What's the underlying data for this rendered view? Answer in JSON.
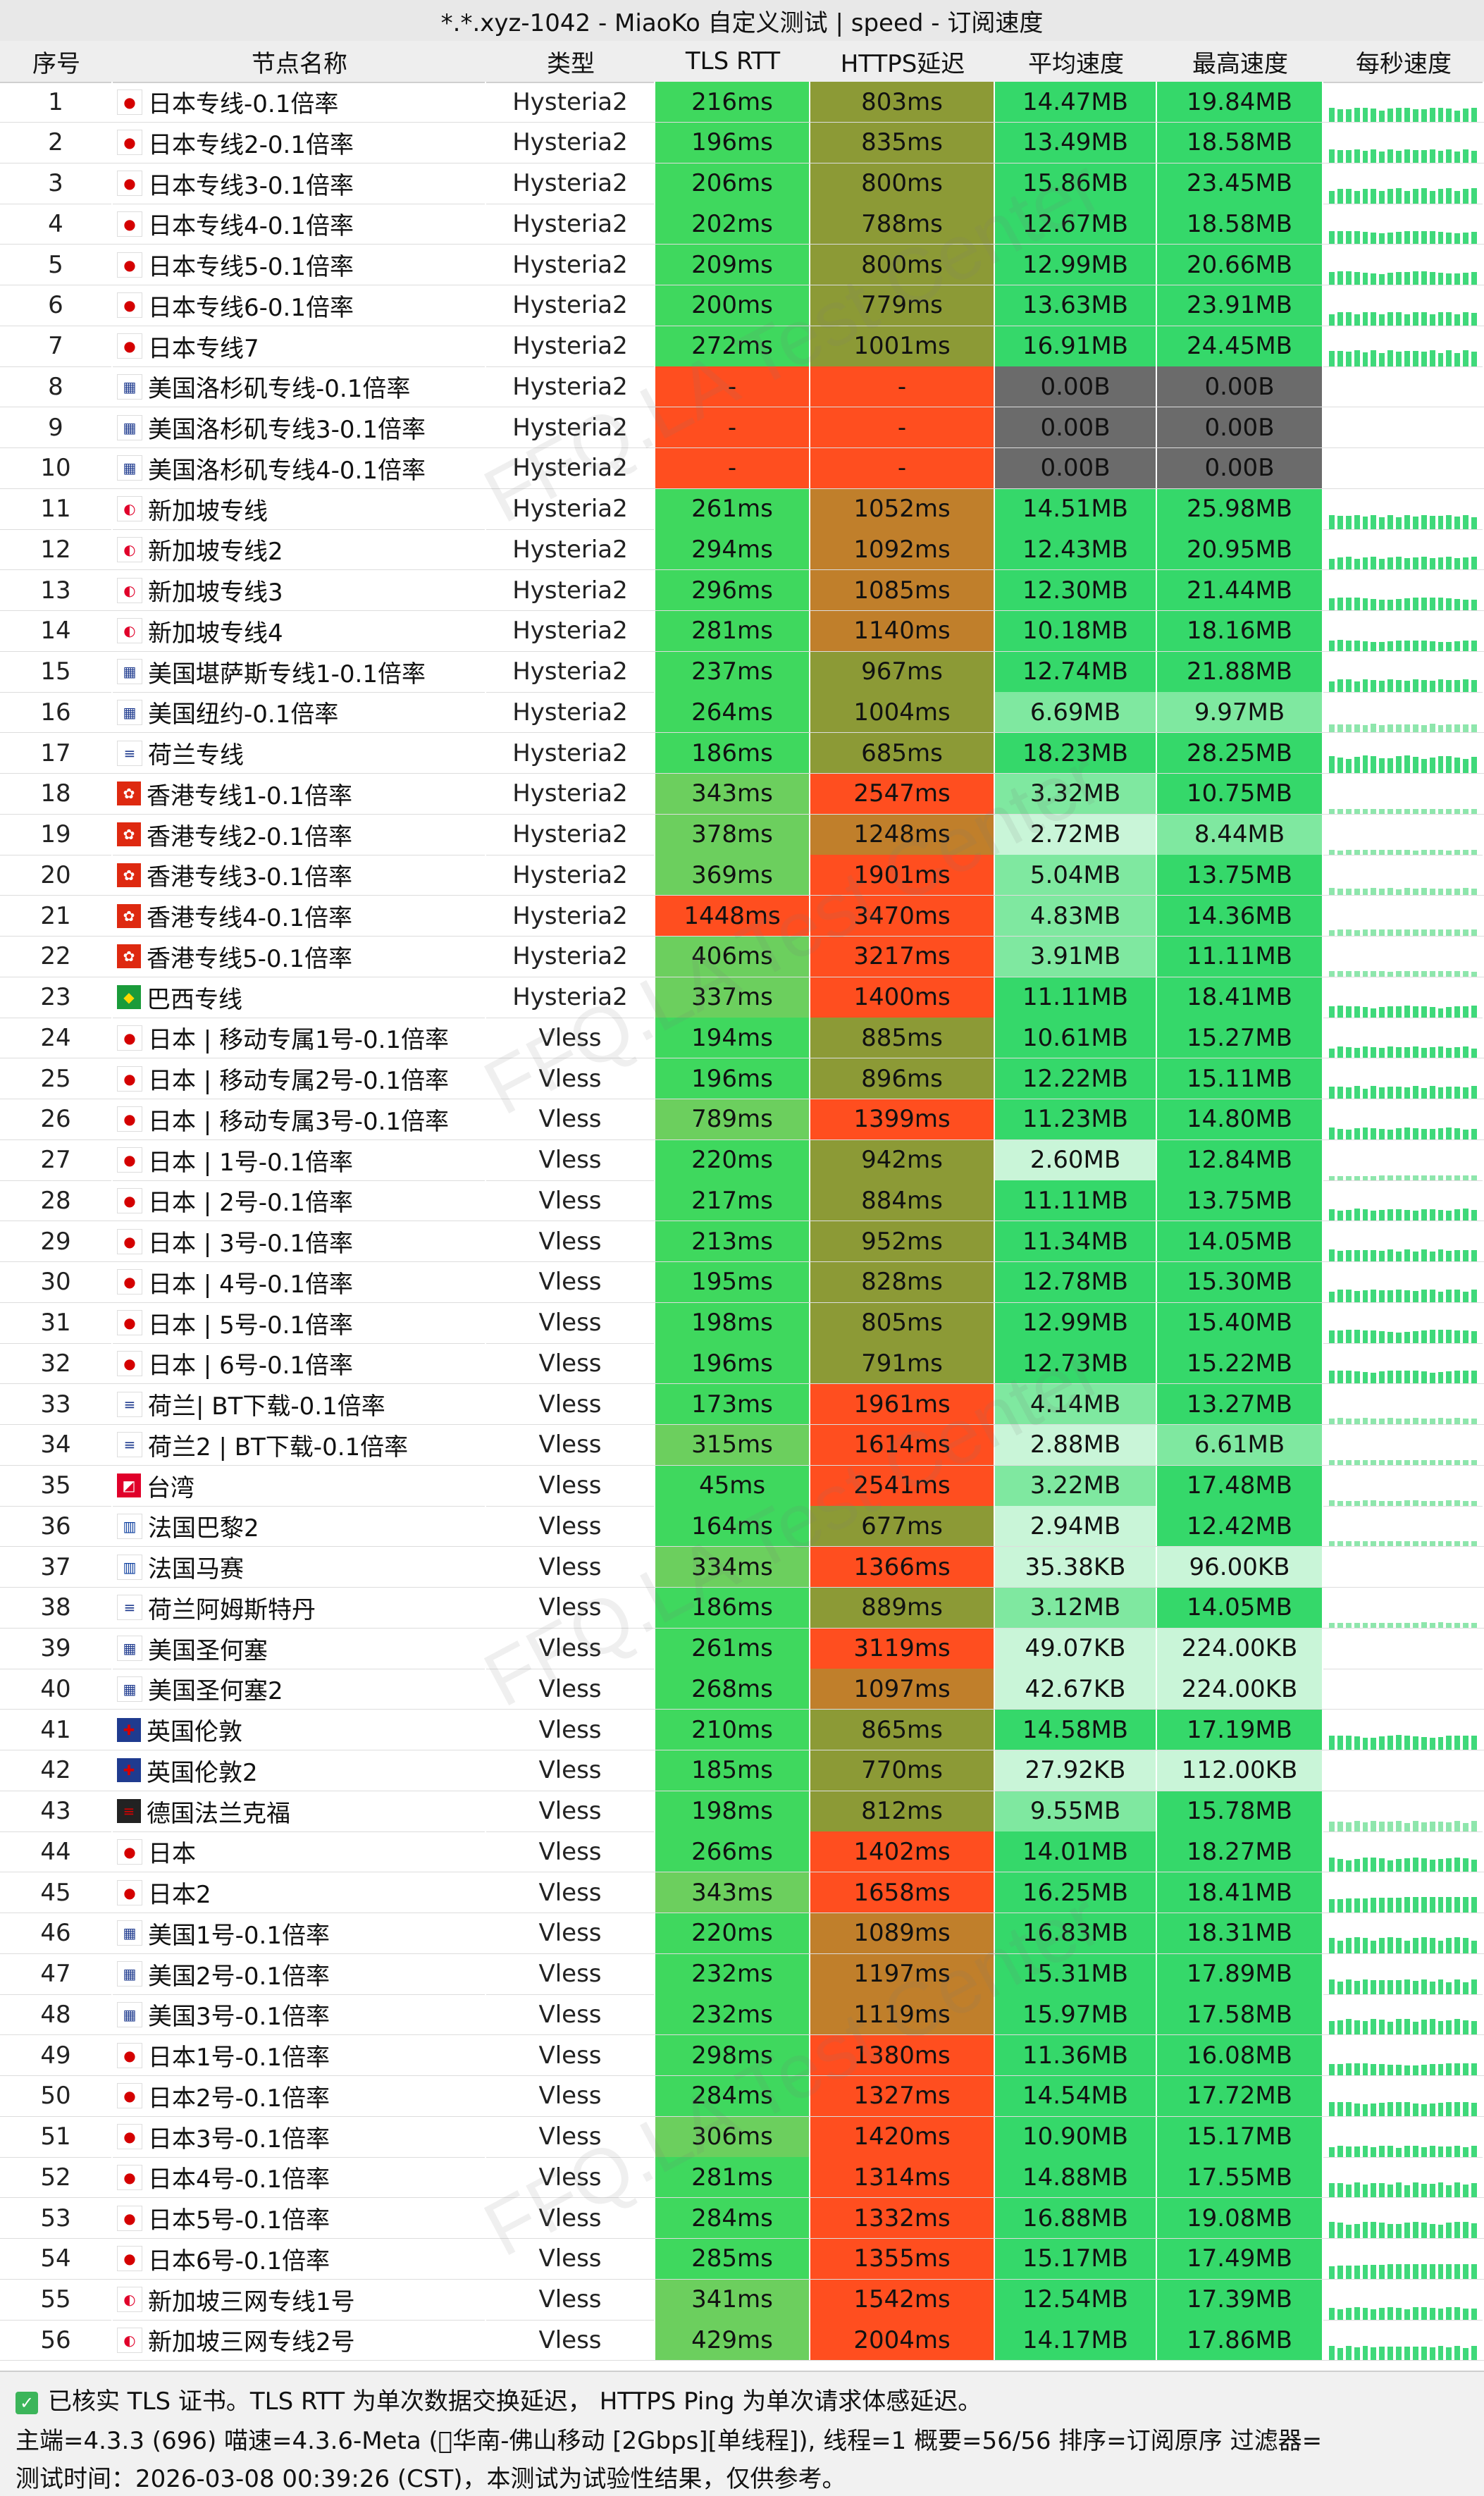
{
  "title": "*.*.xyz-1042 - MiaoKo 自定义测试 | speed - 订阅速度",
  "columns": [
    "序号",
    "节点名称",
    "类型",
    "TLS RTT",
    "HTTPS延迟",
    "平均速度",
    "最高速度",
    "每秒速度"
  ],
  "rows": [
    {
      "id": "1",
      "flag": "jp",
      "name": "日本专线-0.1倍率",
      "type": "Hysteria2",
      "tls": "216ms",
      "https": "803ms",
      "avg": "14.47MB",
      "max": "19.84MB"
    },
    {
      "id": "2",
      "flag": "jp",
      "name": "日本专线2-0.1倍率",
      "type": "Hysteria2",
      "tls": "196ms",
      "https": "835ms",
      "avg": "13.49MB",
      "max": "18.58MB"
    },
    {
      "id": "3",
      "flag": "jp",
      "name": "日本专线3-0.1倍率",
      "type": "Hysteria2",
      "tls": "206ms",
      "https": "800ms",
      "avg": "15.86MB",
      "max": "23.45MB"
    },
    {
      "id": "4",
      "flag": "jp",
      "name": "日本专线4-0.1倍率",
      "type": "Hysteria2",
      "tls": "202ms",
      "https": "788ms",
      "avg": "12.67MB",
      "max": "18.58MB"
    },
    {
      "id": "5",
      "flag": "jp",
      "name": "日本专线5-0.1倍率",
      "type": "Hysteria2",
      "tls": "209ms",
      "https": "800ms",
      "avg": "12.99MB",
      "max": "20.66MB"
    },
    {
      "id": "6",
      "flag": "jp",
      "name": "日本专线6-0.1倍率",
      "type": "Hysteria2",
      "tls": "200ms",
      "https": "779ms",
      "avg": "13.63MB",
      "max": "23.91MB"
    },
    {
      "id": "7",
      "flag": "jp",
      "name": "日本专线7",
      "type": "Hysteria2",
      "tls": "272ms",
      "https": "1001ms",
      "avg": "16.91MB",
      "max": "24.45MB"
    },
    {
      "id": "8",
      "flag": "us",
      "name": "美国洛杉矶专线-0.1倍率",
      "type": "Hysteria2",
      "tls": "-",
      "https": "-",
      "avg": "0.00B",
      "max": "0.00B"
    },
    {
      "id": "9",
      "flag": "us",
      "name": "美国洛杉矶专线3-0.1倍率",
      "type": "Hysteria2",
      "tls": "-",
      "https": "-",
      "avg": "0.00B",
      "max": "0.00B"
    },
    {
      "id": "10",
      "flag": "us",
      "name": "美国洛杉矶专线4-0.1倍率",
      "type": "Hysteria2",
      "tls": "-",
      "https": "-",
      "avg": "0.00B",
      "max": "0.00B"
    },
    {
      "id": "11",
      "flag": "sg",
      "name": "新加坡专线",
      "type": "Hysteria2",
      "tls": "261ms",
      "https": "1052ms",
      "avg": "14.51MB",
      "max": "25.98MB"
    },
    {
      "id": "12",
      "flag": "sg",
      "name": "新加坡专线2",
      "type": "Hysteria2",
      "tls": "294ms",
      "https": "1092ms",
      "avg": "12.43MB",
      "max": "20.95MB"
    },
    {
      "id": "13",
      "flag": "sg",
      "name": "新加坡专线3",
      "type": "Hysteria2",
      "tls": "296ms",
      "https": "1085ms",
      "avg": "12.30MB",
      "max": "21.44MB"
    },
    {
      "id": "14",
      "flag": "sg",
      "name": "新加坡专线4",
      "type": "Hysteria2",
      "tls": "281ms",
      "https": "1140ms",
      "avg": "10.18MB",
      "max": "18.16MB"
    },
    {
      "id": "15",
      "flag": "us",
      "name": "美国堪萨斯专线1-0.1倍率",
      "type": "Hysteria2",
      "tls": "237ms",
      "https": "967ms",
      "avg": "12.74MB",
      "max": "21.88MB"
    },
    {
      "id": "16",
      "flag": "us",
      "name": "美国纽约-0.1倍率",
      "type": "Hysteria2",
      "tls": "264ms",
      "https": "1004ms",
      "avg": "6.69MB",
      "max": "9.97MB"
    },
    {
      "id": "17",
      "flag": "nl",
      "name": "荷兰专线",
      "type": "Hysteria2",
      "tls": "186ms",
      "https": "685ms",
      "avg": "18.23MB",
      "max": "28.25MB"
    },
    {
      "id": "18",
      "flag": "hk",
      "name": "香港专线1-0.1倍率",
      "type": "Hysteria2",
      "tls": "343ms",
      "https": "2547ms",
      "avg": "3.32MB",
      "max": "10.75MB"
    },
    {
      "id": "19",
      "flag": "hk",
      "name": "香港专线2-0.1倍率",
      "type": "Hysteria2",
      "tls": "378ms",
      "https": "1248ms",
      "avg": "2.72MB",
      "max": "8.44MB"
    },
    {
      "id": "20",
      "flag": "hk",
      "name": "香港专线3-0.1倍率",
      "type": "Hysteria2",
      "tls": "369ms",
      "https": "1901ms",
      "avg": "5.04MB",
      "max": "13.75MB"
    },
    {
      "id": "21",
      "flag": "hk",
      "name": "香港专线4-0.1倍率",
      "type": "Hysteria2",
      "tls": "1448ms",
      "https": "3470ms",
      "avg": "4.83MB",
      "max": "14.36MB"
    },
    {
      "id": "22",
      "flag": "hk",
      "name": "香港专线5-0.1倍率",
      "type": "Hysteria2",
      "tls": "406ms",
      "https": "3217ms",
      "avg": "3.91MB",
      "max": "11.11MB"
    },
    {
      "id": "23",
      "flag": "br",
      "name": "巴西专线",
      "type": "Hysteria2",
      "tls": "337ms",
      "https": "1400ms",
      "avg": "11.11MB",
      "max": "18.41MB"
    },
    {
      "id": "24",
      "flag": "jp",
      "name": "日本 | 移动专属1号-0.1倍率",
      "type": "Vless",
      "tls": "194ms",
      "https": "885ms",
      "avg": "10.61MB",
      "max": "15.27MB"
    },
    {
      "id": "25",
      "flag": "jp",
      "name": "日本 | 移动专属2号-0.1倍率",
      "type": "Vless",
      "tls": "196ms",
      "https": "896ms",
      "avg": "12.22MB",
      "max": "15.11MB"
    },
    {
      "id": "26",
      "flag": "jp",
      "name": "日本 | 移动专属3号-0.1倍率",
      "type": "Vless",
      "tls": "789ms",
      "https": "1399ms",
      "avg": "11.23MB",
      "max": "14.80MB"
    },
    {
      "id": "27",
      "flag": "jp",
      "name": "日本 | 1号-0.1倍率",
      "type": "Vless",
      "tls": "220ms",
      "https": "942ms",
      "avg": "2.60MB",
      "max": "12.84MB"
    },
    {
      "id": "28",
      "flag": "jp",
      "name": "日本 | 2号-0.1倍率",
      "type": "Vless",
      "tls": "217ms",
      "https": "884ms",
      "avg": "11.11MB",
      "max": "13.75MB"
    },
    {
      "id": "29",
      "flag": "jp",
      "name": "日本 | 3号-0.1倍率",
      "type": "Vless",
      "tls": "213ms",
      "https": "952ms",
      "avg": "11.34MB",
      "max": "14.05MB"
    },
    {
      "id": "30",
      "flag": "jp",
      "name": "日本 | 4号-0.1倍率",
      "type": "Vless",
      "tls": "195ms",
      "https": "828ms",
      "avg": "12.78MB",
      "max": "15.30MB"
    },
    {
      "id": "31",
      "flag": "jp",
      "name": "日本 | 5号-0.1倍率",
      "type": "Vless",
      "tls": "198ms",
      "https": "805ms",
      "avg": "12.99MB",
      "max": "15.40MB"
    },
    {
      "id": "32",
      "flag": "jp",
      "name": "日本 | 6号-0.1倍率",
      "type": "Vless",
      "tls": "196ms",
      "https": "791ms",
      "avg": "12.73MB",
      "max": "15.22MB"
    },
    {
      "id": "33",
      "flag": "nl",
      "name": "荷兰| BT下载-0.1倍率",
      "type": "Vless",
      "tls": "173ms",
      "https": "1961ms",
      "avg": "4.14MB",
      "max": "13.27MB"
    },
    {
      "id": "34",
      "flag": "nl",
      "name": "荷兰2 | BT下载-0.1倍率",
      "type": "Vless",
      "tls": "315ms",
      "https": "1614ms",
      "avg": "2.88MB",
      "max": "6.61MB"
    },
    {
      "id": "35",
      "flag": "tw",
      "name": "台湾",
      "type": "Vless",
      "tls": "45ms",
      "https": "2541ms",
      "avg": "3.22MB",
      "max": "17.48MB"
    },
    {
      "id": "36",
      "flag": "fr",
      "name": "法国巴黎2",
      "type": "Vless",
      "tls": "164ms",
      "https": "677ms",
      "avg": "2.94MB",
      "max": "12.42MB"
    },
    {
      "id": "37",
      "flag": "fr",
      "name": "法国马赛",
      "type": "Vless",
      "tls": "334ms",
      "https": "1366ms",
      "avg": "35.38KB",
      "max": "96.00KB"
    },
    {
      "id": "38",
      "flag": "nl",
      "name": "荷兰阿姆斯特丹",
      "type": "Vless",
      "tls": "186ms",
      "https": "889ms",
      "avg": "3.12MB",
      "max": "14.05MB"
    },
    {
      "id": "39",
      "flag": "us",
      "name": "美国圣何塞",
      "type": "Vless",
      "tls": "261ms",
      "https": "3119ms",
      "avg": "49.07KB",
      "max": "224.00KB"
    },
    {
      "id": "40",
      "flag": "us",
      "name": "美国圣何塞2",
      "type": "Vless",
      "tls": "268ms",
      "https": "1097ms",
      "avg": "42.67KB",
      "max": "224.00KB"
    },
    {
      "id": "41",
      "flag": "gb",
      "name": "英国伦敦",
      "type": "Vless",
      "tls": "210ms",
      "https": "865ms",
      "avg": "14.58MB",
      "max": "17.19MB"
    },
    {
      "id": "42",
      "flag": "gb",
      "name": "英国伦敦2",
      "type": "Vless",
      "tls": "185ms",
      "https": "770ms",
      "avg": "27.92KB",
      "max": "112.00KB"
    },
    {
      "id": "43",
      "flag": "de",
      "name": "德国法兰克福",
      "type": "Vless",
      "tls": "198ms",
      "https": "812ms",
      "avg": "9.55MB",
      "max": "15.78MB"
    },
    {
      "id": "44",
      "flag": "jp",
      "name": "日本",
      "type": "Vless",
      "tls": "266ms",
      "https": "1402ms",
      "avg": "14.01MB",
      "max": "18.27MB"
    },
    {
      "id": "45",
      "flag": "jp",
      "name": "日本2",
      "type": "Vless",
      "tls": "343ms",
      "https": "1658ms",
      "avg": "16.25MB",
      "max": "18.41MB"
    },
    {
      "id": "46",
      "flag": "us",
      "name": "美国1号-0.1倍率",
      "type": "Vless",
      "tls": "220ms",
      "https": "1089ms",
      "avg": "16.83MB",
      "max": "18.31MB"
    },
    {
      "id": "47",
      "flag": "us",
      "name": "美国2号-0.1倍率",
      "type": "Vless",
      "tls": "232ms",
      "https": "1197ms",
      "avg": "15.31MB",
      "max": "17.89MB"
    },
    {
      "id": "48",
      "flag": "us",
      "name": "美国3号-0.1倍率",
      "type": "Vless",
      "tls": "232ms",
      "https": "1119ms",
      "avg": "15.97MB",
      "max": "17.58MB"
    },
    {
      "id": "49",
      "flag": "jp",
      "name": "日本1号-0.1倍率",
      "type": "Vless",
      "tls": "298ms",
      "https": "1380ms",
      "avg": "11.36MB",
      "max": "16.08MB"
    },
    {
      "id": "50",
      "flag": "jp",
      "name": "日本2号-0.1倍率",
      "type": "Vless",
      "tls": "284ms",
      "https": "1327ms",
      "avg": "14.54MB",
      "max": "17.72MB"
    },
    {
      "id": "51",
      "flag": "jp",
      "name": "日本3号-0.1倍率",
      "type": "Vless",
      "tls": "306ms",
      "https": "1420ms",
      "avg": "10.90MB",
      "max": "15.17MB"
    },
    {
      "id": "52",
      "flag": "jp",
      "name": "日本4号-0.1倍率",
      "type": "Vless",
      "tls": "281ms",
      "https": "1314ms",
      "avg": "14.88MB",
      "max": "17.55MB"
    },
    {
      "id": "53",
      "flag": "jp",
      "name": "日本5号-0.1倍率",
      "type": "Vless",
      "tls": "284ms",
      "https": "1332ms",
      "avg": "16.88MB",
      "max": "19.08MB"
    },
    {
      "id": "54",
      "flag": "jp",
      "name": "日本6号-0.1倍率",
      "type": "Vless",
      "tls": "285ms",
      "https": "1355ms",
      "avg": "15.17MB",
      "max": "17.49MB"
    },
    {
      "id": "55",
      "flag": "sg",
      "name": "新加坡三网专线1号",
      "type": "Vless",
      "tls": "341ms",
      "https": "1542ms",
      "avg": "12.54MB",
      "max": "17.39MB"
    },
    {
      "id": "56",
      "flag": "sg",
      "name": "新加坡三网专线2号",
      "type": "Vless",
      "tls": "429ms",
      "https": "2004ms",
      "avg": "14.17MB",
      "max": "17.86MB"
    }
  ],
  "footer": {
    "line1": "已核实 TLS 证书。TLS RTT 为单次数据交换延迟， HTTPS Ping 为单次请求体感延迟。",
    "line2": "主端=4.3.3 (696) 喵速=4.3.6-Meta (⃝华南-佛山移动 [2Gbps][单线程]), 线程=1 概要=56/56 排序=订阅原序 过滤器=",
    "line3": "测试时间：2026-03-08 00:39:26 (CST)，本测试为试验性结果，仅供参考。"
  },
  "watermark": "FFQ.LA Test Center",
  "colors": {
    "tls_fast": "#3fd85e",
    "tls_mid": "#6ccf5e",
    "tls_slow": "#ff4e1f",
    "https_mid": "#8c9a36",
    "https_warn": "#c07f2b",
    "https_slow": "#ff4e1f",
    "speed_high": "#35d86a",
    "speed_mid": "#7fe8a0",
    "speed_low": "#c9f5d8",
    "fail_red": "#ff4e1f",
    "fail_gray": "#6b6b6b",
    "check_green": "#3cb55a"
  }
}
